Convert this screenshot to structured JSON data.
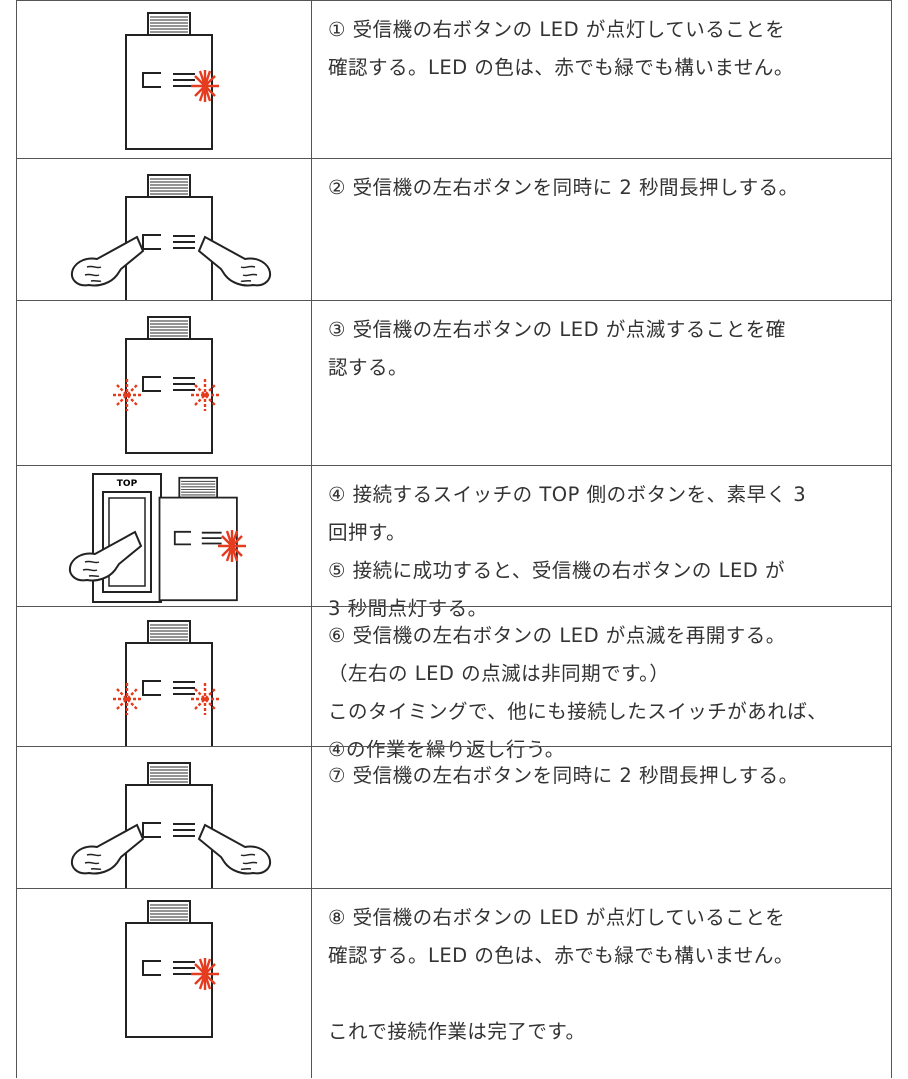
{
  "steps": [
    {
      "lines": [
        "① 受信機の右ボタンの LED が点灯していることを",
        "確認する。LED の色は、赤でも緑でも構いません。"
      ]
    },
    {
      "lines": [
        "② 受信機の左右ボタンを同時に 2 秒間長押しする。"
      ]
    },
    {
      "lines": [
        "③ 受信機の左右ボタンの LED が点滅することを確",
        "認する。"
      ]
    },
    {
      "lines": [
        "④ 接続するスイッチの TOP 側のボタンを、素早く 3",
        "回押す。",
        "⑤ 接続に成功すると、受信機の右ボタンの LED が",
        "3 秒間点灯する。"
      ],
      "illustration_label": "TOP"
    },
    {
      "lines": [
        "⑥ 受信機の左右ボタンの LED が点滅を再開する。",
        "（左右の LED の点滅は非同期です。）",
        "このタイミングで、他にも接続したスイッチがあれば、",
        "④の作業を繰り返し行う。"
      ]
    },
    {
      "lines": [
        "⑦ 受信機の左右ボタンを同時に 2 秒間長押しする。"
      ]
    },
    {
      "lines": [
        "⑧ 受信機の右ボタンの LED が点灯していることを",
        "確認する。LED の色は、赤でも緑でも構いません。"
      ],
      "note": "これで接続作業は完了です。"
    }
  ]
}
